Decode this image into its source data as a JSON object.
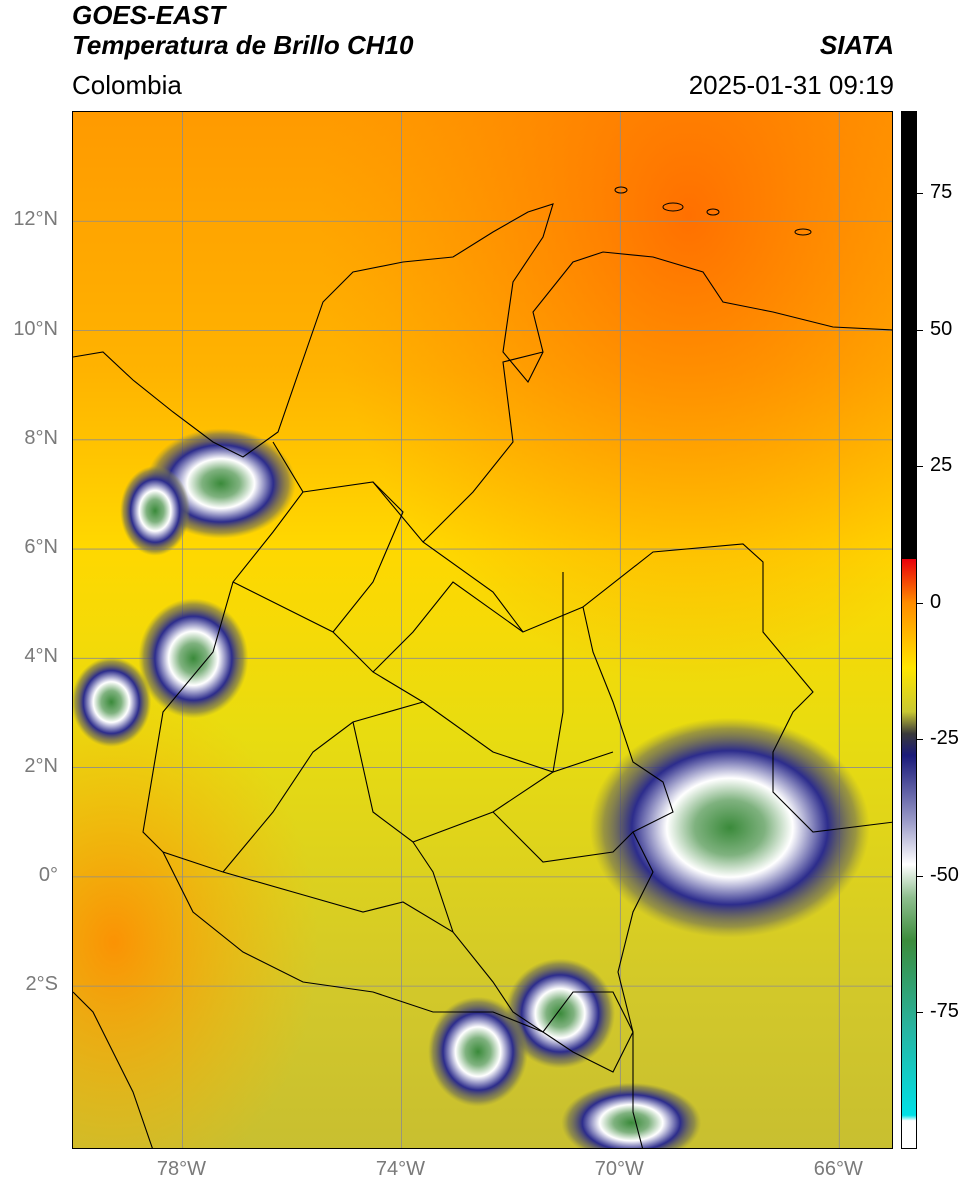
{
  "header": {
    "satellite": "GOES-EAST",
    "product": "Temperatura de Brillo CH10",
    "region": "Colombia",
    "organization": "SIATA",
    "timestamp": "2025-01-31 09:19"
  },
  "map": {
    "extent": {
      "lon_min": -80,
      "lon_max": -65,
      "lat_min": -5,
      "lat_max": 14
    },
    "lat_ticks": [
      {
        "value": 12,
        "label": "12°N"
      },
      {
        "value": 10,
        "label": "10°N"
      },
      {
        "value": 8,
        "label": "8°N"
      },
      {
        "value": 6,
        "label": "6°N"
      },
      {
        "value": 4,
        "label": "4°N"
      },
      {
        "value": 2,
        "label": "2°N"
      },
      {
        "value": 0,
        "label": "0°"
      },
      {
        "value": -2,
        "label": "2°S"
      }
    ],
    "lon_ticks": [
      {
        "value": -78,
        "label": "78°W"
      },
      {
        "value": -74,
        "label": "74°W"
      },
      {
        "value": -70,
        "label": "70°W"
      },
      {
        "value": -66,
        "label": "66°W"
      }
    ],
    "cloud_clusters": [
      {
        "name": "panama-choco",
        "lon": -77.3,
        "lat": 7.2
      },
      {
        "name": "pacific-west",
        "lon": -78.5,
        "lat": 6.7
      },
      {
        "name": "pacific-coast",
        "lon": -77.8,
        "lat": 4.0
      },
      {
        "name": "pacific-south",
        "lon": -79.3,
        "lat": 3.2
      },
      {
        "name": "amazon-east",
        "lon": -68.0,
        "lat": 0.9
      },
      {
        "name": "amazon-south",
        "lon": -71.1,
        "lat": -2.5
      },
      {
        "name": "putumayo",
        "lon": -72.6,
        "lat": -3.2
      },
      {
        "name": "south-edge",
        "lon": -69.8,
        "lat": -4.5
      }
    ]
  },
  "colorbar": {
    "range": [
      -100,
      90
    ],
    "ticks": [
      {
        "value": 75,
        "label": "75"
      },
      {
        "value": 50,
        "label": "50"
      },
      {
        "value": 25,
        "label": "25"
      },
      {
        "value": 0,
        "label": "0"
      },
      {
        "value": -25,
        "label": "-25"
      },
      {
        "value": -50,
        "label": "-50"
      },
      {
        "value": -75,
        "label": "-75"
      }
    ],
    "colors": {
      "black": "#000000",
      "red": "#e8000b",
      "orange": "#ff8c00",
      "yellow": "#ffe600",
      "olive": "#c8c832",
      "navy": "#1a1a7a",
      "white": "#ffffff",
      "green": "#3c8c3c",
      "teal": "#28b4a0",
      "cyan": "#00e0e6"
    }
  }
}
